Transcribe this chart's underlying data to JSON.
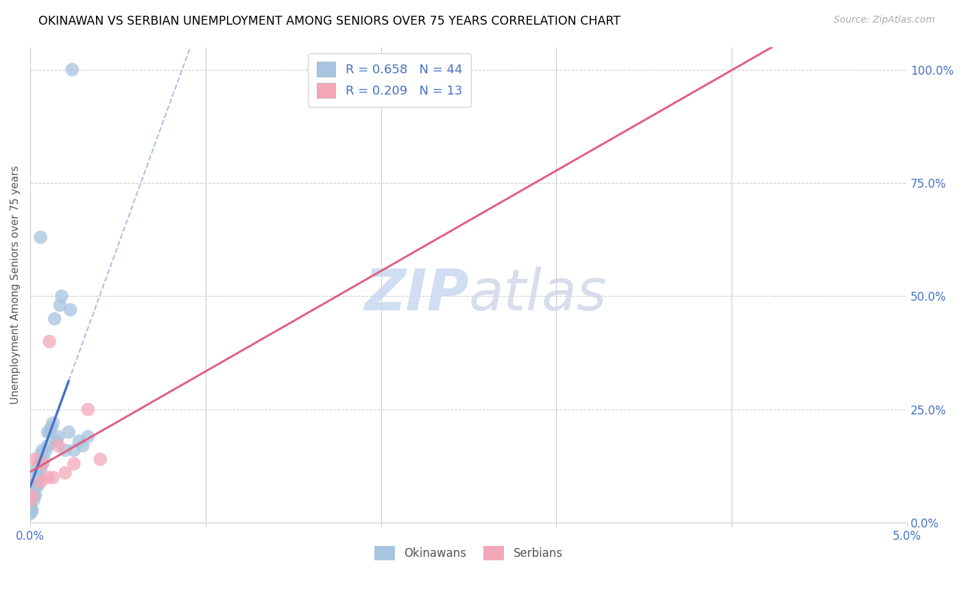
{
  "title": "OKINAWAN VS SERBIAN UNEMPLOYMENT AMONG SENIORS OVER 75 YEARS CORRELATION CHART",
  "source": "Source: ZipAtlas.com",
  "ylabel": "Unemployment Among Seniors over 75 years",
  "okinawan_R": 0.658,
  "okinawan_N": 44,
  "serbian_R": 0.209,
  "serbian_N": 13,
  "okinawan_color": "#a8c4e0",
  "okinawan_line_color": "#4472c4",
  "serbian_color": "#f4a7b9",
  "serbian_line_color": "#e06080",
  "watermark_zip": "ZIP",
  "watermark_atlas": "atlas",
  "okinawan_points_x": [
    0.0,
    0.0,
    0.0,
    0.0,
    0.0,
    0.0001,
    0.0001,
    0.0001,
    0.0001,
    0.0002,
    0.0002,
    0.0002,
    0.0003,
    0.0003,
    0.0003,
    0.0004,
    0.0004,
    0.0005,
    0.0005,
    0.0006,
    0.0006,
    0.0007,
    0.0007,
    0.0008,
    0.0009,
    0.001,
    0.001,
    0.0011,
    0.0012,
    0.0013,
    0.0014,
    0.0015,
    0.0016,
    0.0017,
    0.0018,
    0.002,
    0.0022,
    0.0023,
    0.0025,
    0.0028,
    0.003,
    0.0033,
    0.0024,
    0.0006
  ],
  "okinawan_points_y": [
    0.02,
    0.025,
    0.03,
    0.035,
    0.04,
    0.025,
    0.03,
    0.06,
    0.08,
    0.05,
    0.06,
    0.07,
    0.06,
    0.08,
    0.1,
    0.08,
    0.12,
    0.1,
    0.13,
    0.12,
    0.15,
    0.13,
    0.16,
    0.14,
    0.16,
    0.17,
    0.2,
    0.2,
    0.21,
    0.22,
    0.45,
    0.18,
    0.19,
    0.48,
    0.5,
    0.16,
    0.2,
    0.47,
    0.16,
    0.18,
    0.17,
    0.19,
    1.0,
    0.63
  ],
  "serbian_points_x": [
    0.0,
    0.0001,
    0.0003,
    0.0006,
    0.0007,
    0.001,
    0.0011,
    0.0013,
    0.0016,
    0.002,
    0.0025,
    0.0033,
    0.004
  ],
  "serbian_points_y": [
    0.05,
    0.06,
    0.14,
    0.09,
    0.13,
    0.1,
    0.4,
    0.1,
    0.17,
    0.11,
    0.13,
    0.25,
    0.14
  ],
  "xlim": [
    0.0,
    0.05
  ],
  "ylim": [
    0.0,
    1.05
  ],
  "xticks": [
    0.0,
    0.01,
    0.02,
    0.03,
    0.04,
    0.05
  ],
  "yticks": [
    0.0,
    0.25,
    0.5,
    0.75,
    1.0
  ],
  "ytick_labels": [
    "0.0%",
    "25.0%",
    "50.0%",
    "75.0%",
    "100.0%"
  ],
  "grid_color": "#cccccc",
  "spine_color": "#cccccc"
}
